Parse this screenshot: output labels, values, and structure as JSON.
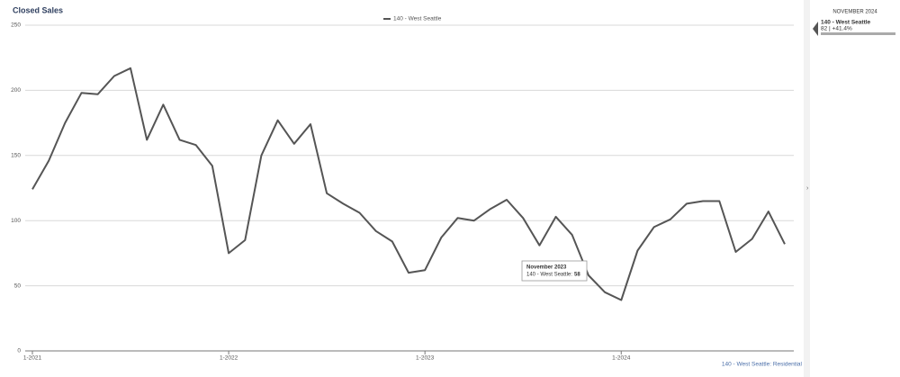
{
  "chart_data": {
    "type": "line",
    "title": "Closed Sales",
    "categories": [
      "1-2021",
      null,
      null,
      null,
      null,
      null,
      null,
      null,
      null,
      null,
      null,
      null,
      "1-2022",
      null,
      null,
      null,
      null,
      null,
      null,
      null,
      null,
      null,
      null,
      null,
      "1-2023",
      null,
      null,
      null,
      null,
      null,
      null,
      null,
      null,
      null,
      null,
      null,
      "1-2024",
      null,
      null,
      null,
      null,
      null,
      null,
      null,
      null,
      null,
      null
    ],
    "series": [
      {
        "name": "140 - West Seattle",
        "color": "#555555",
        "values": [
          124,
          146,
          175,
          198,
          197,
          211,
          217,
          162,
          189,
          162,
          158,
          142,
          75,
          85,
          150,
          177,
          159,
          174,
          121,
          113,
          106,
          92,
          84,
          60,
          62,
          87,
          102,
          100,
          109,
          116,
          102,
          81,
          103,
          89,
          58,
          45,
          39,
          77,
          95,
          101,
          113,
          115,
          115,
          76,
          86,
          107,
          82
        ]
      }
    ],
    "ylim": [
      0,
      250
    ],
    "yticks": [
      0,
      50,
      100,
      150,
      200,
      250
    ],
    "grid": true,
    "legend": "top",
    "source": "140 - West Seattle: Residential",
    "tooltip": {
      "title": "November 2023",
      "label": "140 - West Seattle:",
      "value": 58
    }
  },
  "side_panel": {
    "header": "NOVEMBER 2024",
    "name": "140 - West Seattle",
    "summary": "82 | +41.4%"
  }
}
